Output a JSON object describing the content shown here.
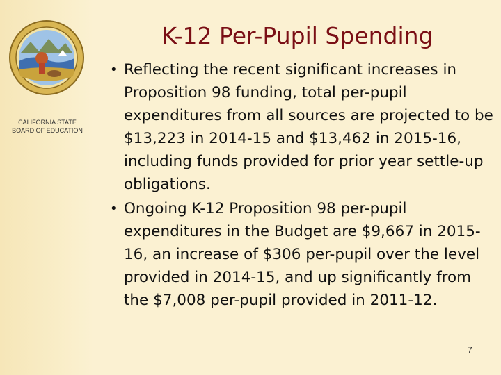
{
  "slide": {
    "title": "K-12 Per-Pupil Spending",
    "page_number": "7"
  },
  "sidebar": {
    "seal_icon": "california-state-seal-icon",
    "board_name_line1": "CALIFORNIA STATE",
    "board_name_line2": "BOARD OF EDUCATION"
  },
  "bullets": [
    {
      "text": "Reflecting the recent significant increases in Proposition 98 funding, total per-pupil expenditures from all sources are projected to be $13,223 in 2014-15 and $13,462 in 2015-16, including funds provided for prior year settle-up obligations."
    },
    {
      "text": "Ongoing K-12 Proposition 98 per-pupil expenditures in the Budget are $9,667 in 2015-16, an increase of $306 per-pupil over the level provided in 2014-15, and up significantly from the $7,008 per-pupil provided in 2011-12."
    }
  ],
  "colors": {
    "title": "#7a0f15",
    "background": "#fbf1d2",
    "seal_blue": "#2b4f8a",
    "seal_gold": "#c9a33c"
  }
}
